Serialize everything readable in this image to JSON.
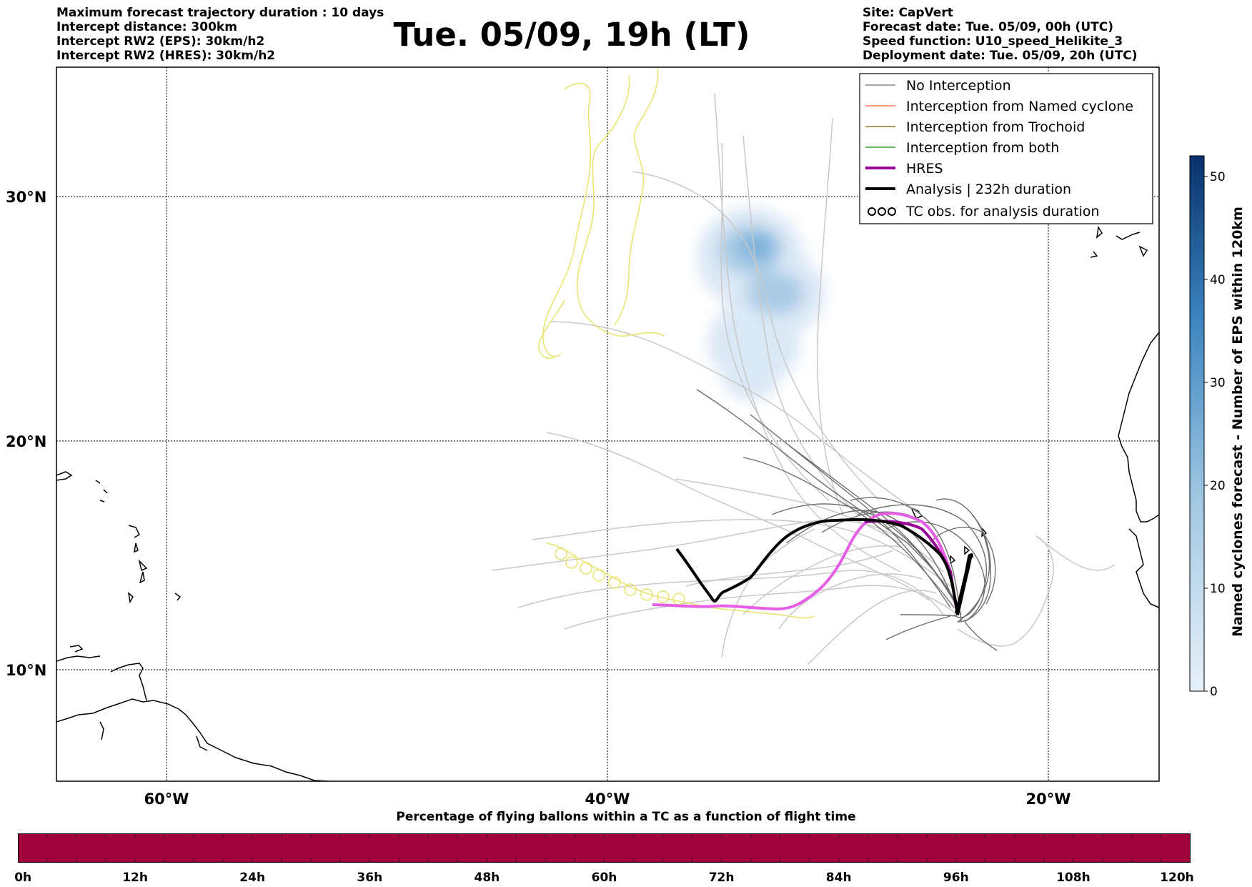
{
  "header": {
    "left_lines": [
      "Maximum forecast trajectory duration : 10 days",
      "Intercept distance: 300km",
      "Intercept RW2 (EPS):  30km/h2",
      "Intercept RW2 (HRES): 30km/h2"
    ],
    "title": "Tue. 05/09, 19h (LT)",
    "right_lines": [
      "Site: CapVert",
      "Forecast date: Tue. 05/09, 00h (UTC)",
      "Speed function: U10_speed_Helikite_3",
      "Deployment date: Tue. 05/09, 20h (UTC)"
    ]
  },
  "map": {
    "lat_labels": [
      "30°N",
      "20°N",
      "10°N"
    ],
    "lon_labels": [
      "60°W",
      "40°W",
      "20°W"
    ],
    "lat_values": [
      30,
      20,
      10
    ],
    "lon_values": [
      -60,
      -40,
      -20
    ],
    "extent": {
      "lon_min": -65,
      "lon_max": -15,
      "lat_min": 5.5,
      "lat_max": 35.3
    }
  },
  "legend": {
    "items": [
      {
        "label": "No Interception",
        "color": "#888888",
        "style": "thin"
      },
      {
        "label": "Interception from Named cyclone",
        "color": "#ff7f50",
        "style": "thin"
      },
      {
        "label": "Interception from Trochoid",
        "color": "#8b7d2a",
        "style": "thin"
      },
      {
        "label": "Interception from both",
        "color": "#2ca02c",
        "style": "thin"
      },
      {
        "label": "HRES",
        "color": "#990099",
        "style": "thick"
      },
      {
        "label": "Analysis | 232h duration",
        "color": "#000000",
        "style": "thick"
      },
      {
        "label": "TC obs. for analysis duration",
        "color": "#000000",
        "style": "loops"
      }
    ]
  },
  "colorbar": {
    "label": "Named cyclones forecast - Number of EPS within 120km",
    "ticks": [
      "0",
      "10",
      "20",
      "30",
      "40",
      "50"
    ],
    "min": 0,
    "max": 52,
    "color_low": "#e8f1fa",
    "color_high": "#08306b"
  },
  "timebar": {
    "caption": "Percentage of flying ballons within a TC as a function of flight time",
    "labels": [
      "0h",
      "12h",
      "24h",
      "36h",
      "48h",
      "60h",
      "72h",
      "84h",
      "96h",
      "108h",
      "120h"
    ],
    "color": "#a0003c"
  },
  "colors": {
    "hres": "#e65ee6",
    "hres_dark": "#990099",
    "analysis": "#000000",
    "trochoid": "#e8e46a",
    "ens_light": "#c8c8c8",
    "ens_dark": "#6e6e6e"
  }
}
